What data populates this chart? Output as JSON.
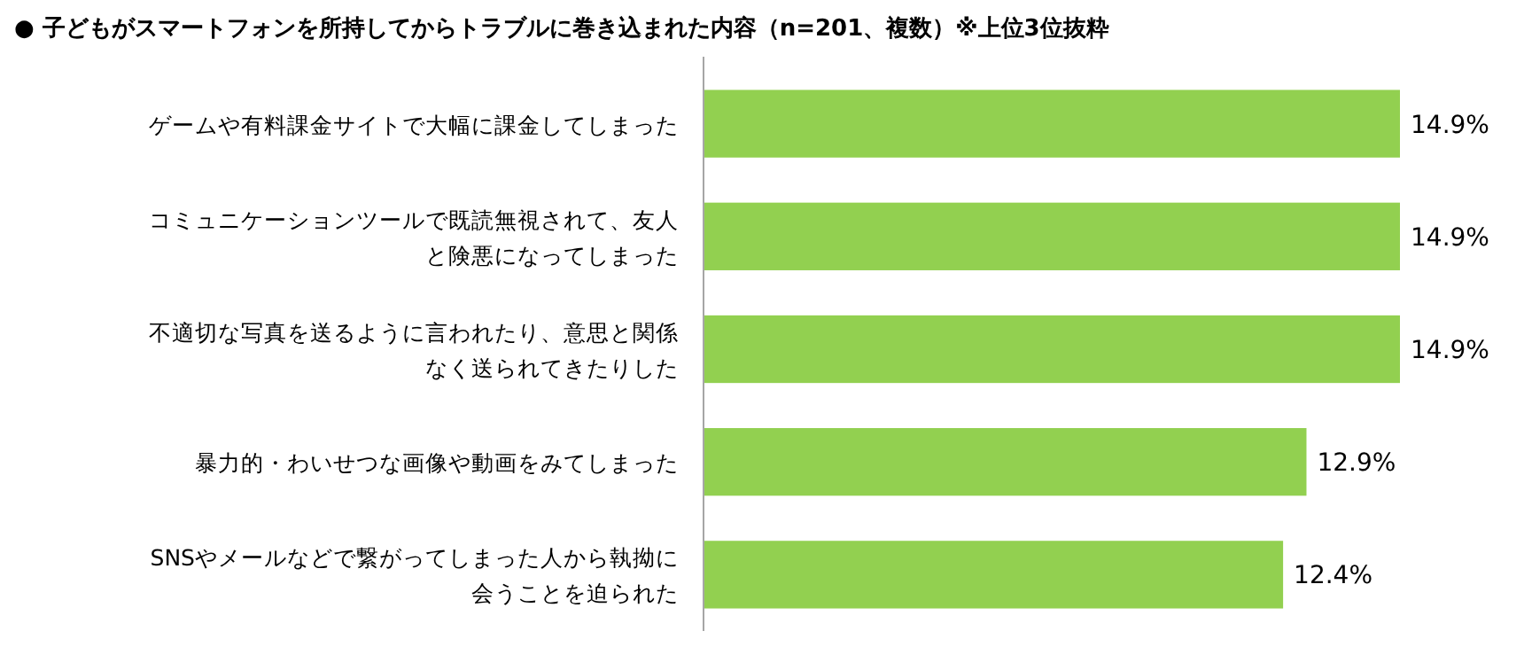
{
  "chart_data": {
    "type": "bar",
    "orientation": "horizontal",
    "title": "●  子どもがスマートフォンを所持してからトラブルに巻き込まれた内容（n=201、複数）※上位3位抜粋",
    "categories": [
      "ゲームや有料課金サイトで大幅に課金してしまった",
      "コミュニケーションツールで既読無視されて、友人と険悪になってしまった",
      "不適切な写真を送るように言われたり、意思と関係なく送られてきたりした",
      "暴力的・わいせつな画像や動画をみてしまった",
      "SNSやメールなどで繋がってしまった人から執拗に会うことを迫られた"
    ],
    "values": [
      14.9,
      14.9,
      14.9,
      12.9,
      12.4
    ],
    "color": "#92d050",
    "data_labels": true,
    "value_labels": [
      "14.9%",
      "14.9%",
      "14.9%",
      "12.9%",
      "12.4%"
    ],
    "stacked": false
  }
}
